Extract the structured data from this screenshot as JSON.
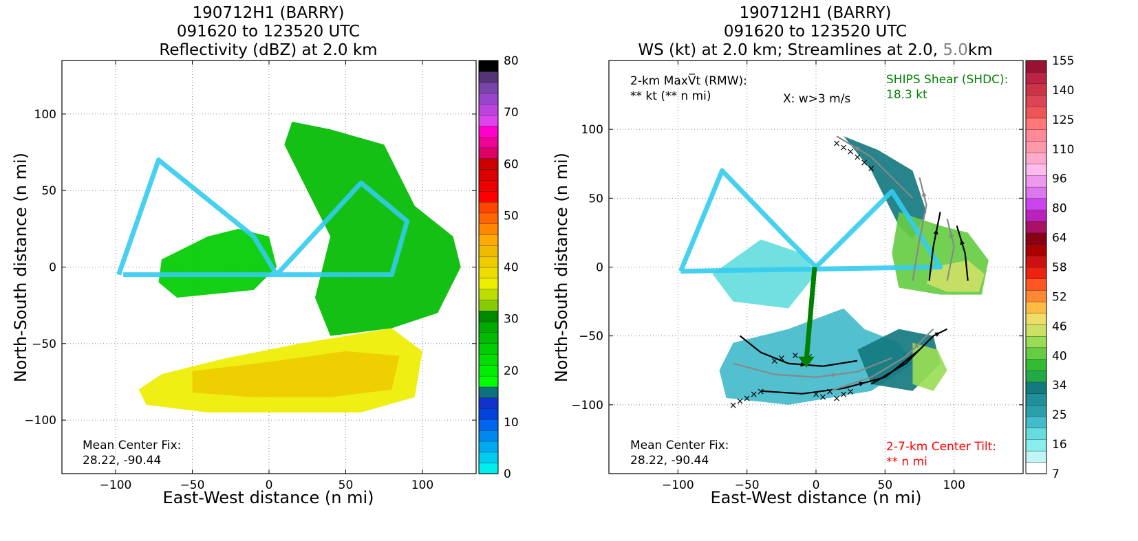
{
  "colors": {
    "grid": "#888888",
    "shear_text": "#008000",
    "tilt_text": "#ff0000",
    "alt_level_text": "#808080",
    "flight_track": "#33ccee",
    "streamline": "#000000",
    "streamline_alt": "#888888"
  },
  "chart_data": [
    {
      "type": "heatmap",
      "title_lines": [
        "190712H1 (BARRY)",
        "091620 to 123520 UTC",
        "Reflectivity (dBZ) at 2.0 km"
      ],
      "xlabel": "East-West distance (n mi)",
      "ylabel": "North-South distance (n mi)",
      "xlim": [
        -135,
        135
      ],
      "ylim": [
        -135,
        135
      ],
      "xticks": [
        -100,
        -50,
        0,
        50,
        100
      ],
      "yticks": [
        -100,
        -50,
        0,
        50,
        100
      ],
      "tick_labels_x": [
        "−100",
        "−50",
        "0",
        "50",
        "100"
      ],
      "tick_labels_y": [
        "−100",
        "−50",
        "0",
        "50",
        "100"
      ],
      "grid": true,
      "colorbar": {
        "min": 0,
        "max": 80,
        "tick_values": [
          0,
          10,
          20,
          30,
          40,
          50,
          60,
          70,
          80
        ],
        "tick_labels": [
          "0",
          "10",
          "20",
          "30",
          "40",
          "50",
          "60",
          "70",
          "80"
        ],
        "colors": [
          "#00eeee",
          "#00ccee",
          "#00aaee",
          "#0088ee",
          "#0066ee",
          "#0044dd",
          "#1133cc",
          "#106f80",
          "#00ff00",
          "#00ee00",
          "#00dd00",
          "#00cc00",
          "#00bb00",
          "#00aa00",
          "#008800",
          "#88cc00",
          "#bbdd00",
          "#eeee00",
          "#eedd00",
          "#eecc00",
          "#eebb00",
          "#ffaa00",
          "#ff8800",
          "#ff6600",
          "#ff4400",
          "#ff0000",
          "#ee0000",
          "#dd0000",
          "#cc0000",
          "#dd0066",
          "#ee0099",
          "#ff00cc",
          "#dd44ee",
          "#bb44dd",
          "#9944cc",
          "#7744aa",
          "#553377",
          "#000000"
        ]
      },
      "annotations": [
        {
          "text_lines": [
            "Mean Center Fix:",
            "28.22, -90.44"
          ],
          "position": "bottom-left"
        }
      ],
      "flight_track": [
        [
          -98,
          -5
        ],
        [
          -72,
          70
        ],
        [
          -10,
          20
        ],
        [
          5,
          -5
        ],
        [
          60,
          55
        ],
        [
          90,
          30
        ],
        [
          80,
          -5
        ],
        [
          -95,
          -5
        ]
      ],
      "regions": [
        {
          "level_dbz": 24,
          "points": [
            [
              -70,
              5
            ],
            [
              -40,
              20
            ],
            [
              -20,
              25
            ],
            [
              0,
              20
            ],
            [
              5,
              0
            ],
            [
              -10,
              -15
            ],
            [
              -60,
              -20
            ],
            [
              -72,
              -10
            ]
          ]
        },
        {
          "level_dbz": 26,
          "points": [
            [
              15,
              95
            ],
            [
              40,
              90
            ],
            [
              75,
              80
            ],
            [
              95,
              40
            ],
            [
              120,
              20
            ],
            [
              125,
              0
            ],
            [
              110,
              -30
            ],
            [
              80,
              -40
            ],
            [
              40,
              -45
            ],
            [
              30,
              -20
            ],
            [
              40,
              20
            ],
            [
              20,
              60
            ],
            [
              10,
              80
            ]
          ]
        },
        {
          "level_dbz": 36,
          "points": [
            [
              -70,
              -70
            ],
            [
              -30,
              -60
            ],
            [
              20,
              -50
            ],
            [
              80,
              -40
            ],
            [
              100,
              -55
            ],
            [
              95,
              -85
            ],
            [
              60,
              -95
            ],
            [
              10,
              -95
            ],
            [
              -40,
              -95
            ],
            [
              -80,
              -90
            ],
            [
              -85,
              -80
            ]
          ]
        },
        {
          "level_dbz": 40,
          "points": [
            [
              -50,
              -68
            ],
            [
              0,
              -62
            ],
            [
              50,
              -55
            ],
            [
              85,
              -58
            ],
            [
              80,
              -80
            ],
            [
              40,
              -85
            ],
            [
              -10,
              -85
            ],
            [
              -50,
              -82
            ]
          ]
        }
      ]
    },
    {
      "type": "heatmap",
      "title_lines": [
        "190712H1 (BARRY)",
        "091620 to 123520 UTC",
        "WS (kt) at 2.0 km; Streamlines at 2.0, ",
        "5.0",
        "km"
      ],
      "xlabel": "East-West distance (n mi)",
      "ylabel": "North-South distance (n mi)",
      "xlim": [
        -150,
        150
      ],
      "ylim": [
        -150,
        150
      ],
      "xticks": [
        -100,
        -50,
        0,
        50,
        100
      ],
      "yticks": [
        -100,
        -50,
        0,
        50,
        100
      ],
      "tick_labels_x": [
        "−100",
        "−50",
        "0",
        "50",
        "100"
      ],
      "tick_labels_y": [
        "−100",
        "−50",
        "0",
        "50",
        "100"
      ],
      "grid": true,
      "colorbar": {
        "min": 7,
        "max": 160,
        "tick_values": [
          7,
          16,
          25,
          34,
          40,
          46,
          52,
          58,
          64,
          80,
          96,
          110,
          125,
          140,
          155
        ],
        "tick_labels": [
          "7",
          "16",
          "25",
          "34",
          "40",
          "46",
          "52",
          "58",
          "64",
          "80",
          "96",
          "110",
          "125",
          "140",
          "155"
        ],
        "colors": [
          "#ffffff",
          "#bff5f5",
          "#88eeee",
          "#66dddd",
          "#44bbcc",
          "#2a9faa",
          "#1f8f99",
          "#137a80",
          "#22aa44",
          "#33bb33",
          "#66cc44",
          "#99dd55",
          "#cce066",
          "#eedd66",
          "#ffbb44",
          "#ff8833",
          "#ff5522",
          "#ee2211",
          "#cc1111",
          "#aa0000",
          "#880011",
          "#aa1166",
          "#bb22bb",
          "#cc44ee",
          "#dd77ee",
          "#ee99ee",
          "#ffbbee",
          "#ffaacc",
          "#ff99aa",
          "#ff8899",
          "#ff7777",
          "#ee5555",
          "#dd4455",
          "#cc3344",
          "#bb2244",
          "#991133"
        ]
      },
      "annotations": [
        {
          "text_lines": [
            "2-km MaxV̅t (RMW):",
            "** kt (** n mi)"
          ],
          "position": "top-left"
        },
        {
          "text_lines": [
            "X: w>3 m/s"
          ],
          "position": "top-center"
        },
        {
          "text_lines": [
            "SHIPS Shear (SHDC):",
            "18.3 kt"
          ],
          "position": "top-right",
          "color": "#008000"
        },
        {
          "text_lines": [
            "Mean Center Fix:",
            "28.22, -90.44"
          ],
          "position": "bottom-left"
        },
        {
          "text_lines": [
            "2-7-km Center Tilt:",
            "** n mi"
          ],
          "position": "bottom-right",
          "color": "#ff0000"
        }
      ],
      "shear_vector": {
        "from": [
          -1,
          0
        ],
        "to": [
          -7,
          -68
        ]
      },
      "flight_track": [
        [
          -98,
          -3
        ],
        [
          -68,
          70
        ],
        [
          -20,
          20
        ],
        [
          0,
          0
        ],
        [
          55,
          55
        ],
        [
          90,
          0
        ],
        [
          -98,
          -3
        ]
      ],
      "regions": [
        {
          "level_kt": 25,
          "points": [
            [
              -60,
              -55
            ],
            [
              -20,
              -45
            ],
            [
              20,
              -30
            ],
            [
              35,
              -45
            ],
            [
              60,
              -55
            ],
            [
              70,
              -70
            ],
            [
              40,
              -90
            ],
            [
              -20,
              -100
            ],
            [
              -65,
              -95
            ],
            [
              -70,
              -75
            ]
          ]
        },
        {
          "level_kt": 22,
          "points": [
            [
              -75,
              -5
            ],
            [
              -40,
              20
            ],
            [
              -10,
              10
            ],
            [
              0,
              -5
            ],
            [
              -20,
              -30
            ],
            [
              -60,
              -25
            ]
          ]
        },
        {
          "level_kt": 40,
          "points": [
            [
              30,
              -60
            ],
            [
              60,
              -45
            ],
            [
              85,
              -50
            ],
            [
              90,
              -70
            ],
            [
              70,
              -90
            ],
            [
              40,
              -85
            ]
          ]
        },
        {
          "level_kt": 55,
          "points": [
            [
              70,
              -55
            ],
            [
              88,
              -60
            ],
            [
              95,
              -75
            ],
            [
              85,
              -90
            ],
            [
              70,
              -85
            ]
          ]
        },
        {
          "level_kt": 40,
          "points": [
            [
              20,
              95
            ],
            [
              45,
              85
            ],
            [
              70,
              70
            ],
            [
              80,
              40
            ],
            [
              70,
              20
            ],
            [
              60,
              30
            ],
            [
              40,
              70
            ]
          ]
        },
        {
          "level_kt": 50,
          "points": [
            [
              60,
              40
            ],
            [
              90,
              30
            ],
            [
              110,
              25
            ],
            [
              125,
              5
            ],
            [
              120,
              -20
            ],
            [
              90,
              -20
            ],
            [
              60,
              -15
            ],
            [
              55,
              10
            ]
          ]
        },
        {
          "level_kt": 58,
          "points": [
            [
              85,
              0
            ],
            [
              110,
              5
            ],
            [
              122,
              -5
            ],
            [
              118,
              -18
            ],
            [
              95,
              -18
            ],
            [
              80,
              -12
            ]
          ]
        }
      ],
      "streamlines": [
        [
          [
            -55,
            -50
          ],
          [
            -40,
            -62
          ],
          [
            -20,
            -70
          ],
          [
            5,
            -72
          ],
          [
            30,
            -68
          ]
        ],
        [
          [
            -60,
            -70
          ],
          [
            -30,
            -78
          ],
          [
            0,
            -80
          ],
          [
            30,
            -76
          ],
          [
            55,
            -66
          ]
        ],
        [
          [
            -40,
            -90
          ],
          [
            -10,
            -92
          ],
          [
            20,
            -88
          ],
          [
            50,
            -80
          ],
          [
            75,
            -60
          ]
        ],
        [
          [
            10,
            -90
          ],
          [
            40,
            -80
          ],
          [
            65,
            -65
          ],
          [
            85,
            -45
          ]
        ],
        [
          [
            40,
            -85
          ],
          [
            65,
            -70
          ],
          [
            85,
            -50
          ],
          [
            95,
            -45
          ]
        ],
        [
          [
            70,
            -10
          ],
          [
            75,
            20
          ],
          [
            80,
            45
          ],
          [
            75,
            65
          ]
        ],
        [
          [
            82,
            -10
          ],
          [
            85,
            15
          ],
          [
            90,
            40
          ]
        ],
        [
          [
            95,
            -10
          ],
          [
            100,
            15
          ],
          [
            95,
            35
          ]
        ],
        [
          [
            110,
            -10
          ],
          [
            108,
            10
          ],
          [
            102,
            30
          ]
        ],
        [
          [
            70,
            50
          ],
          [
            40,
            80
          ],
          [
            15,
            95
          ]
        ]
      ],
      "updraft_marks": [
        [
          -60,
          -100
        ],
        [
          -55,
          -97
        ],
        [
          -50,
          -95
        ],
        [
          -45,
          -92
        ],
        [
          -40,
          -90
        ],
        [
          -30,
          -68
        ],
        [
          -25,
          -66
        ],
        [
          -15,
          -64
        ],
        [
          -5,
          -65
        ],
        [
          0,
          -92
        ],
        [
          5,
          -94
        ],
        [
          10,
          -90
        ],
        [
          15,
          -95
        ],
        [
          20,
          -92
        ],
        [
          25,
          -90
        ],
        [
          15,
          90
        ],
        [
          20,
          87
        ],
        [
          25,
          84
        ],
        [
          30,
          80
        ],
        [
          35,
          76
        ],
        [
          40,
          72
        ]
      ]
    }
  ]
}
